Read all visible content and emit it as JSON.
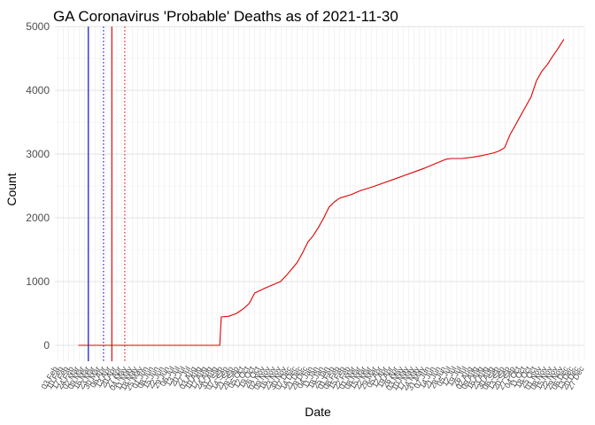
{
  "chart_data": {
    "type": "line",
    "title": "GA Coronavirus 'Probable' Deaths as of 2021-11-30",
    "xlabel": "Date",
    "ylabel": "Count",
    "x_type": "date",
    "xlim": [
      "2020-01-30",
      "2021-12-27"
    ],
    "ylim": [
      -250,
      5000
    ],
    "y_ticks": [
      0,
      1000,
      2000,
      3000,
      4000,
      5000
    ],
    "x_tick_start": "2020-02-03",
    "x_tick_step_days": 7,
    "x_tick_end": "2021-12-27",
    "x_tick_format": "DD Mon",
    "grid": true,
    "legend": "none",
    "series": [
      {
        "color": "#e00000",
        "points": [
          [
            "2020-03-01",
            0
          ],
          [
            "2020-06-01",
            0
          ],
          [
            "2020-07-01",
            0
          ],
          [
            "2020-08-01",
            0
          ],
          [
            "2020-09-03",
            0
          ],
          [
            "2020-09-05",
            445
          ],
          [
            "2020-09-15",
            455
          ],
          [
            "2020-09-25",
            500
          ],
          [
            "2020-10-05",
            580
          ],
          [
            "2020-10-12",
            660
          ],
          [
            "2020-10-19",
            820
          ],
          [
            "2020-10-26",
            860
          ],
          [
            "2020-11-02",
            900
          ],
          [
            "2020-11-12",
            950
          ],
          [
            "2020-11-22",
            1000
          ],
          [
            "2020-11-30",
            1100
          ],
          [
            "2020-12-07",
            1200
          ],
          [
            "2020-12-14",
            1300
          ],
          [
            "2020-12-21",
            1450
          ],
          [
            "2020-12-28",
            1620
          ],
          [
            "2021-01-04",
            1720
          ],
          [
            "2021-01-11",
            1850
          ],
          [
            "2021-01-18",
            2000
          ],
          [
            "2021-01-25",
            2170
          ],
          [
            "2021-02-01",
            2250
          ],
          [
            "2021-02-08",
            2310
          ],
          [
            "2021-02-22",
            2360
          ],
          [
            "2021-03-08",
            2430
          ],
          [
            "2021-03-22",
            2480
          ],
          [
            "2021-04-05",
            2540
          ],
          [
            "2021-04-19",
            2600
          ],
          [
            "2021-05-03",
            2660
          ],
          [
            "2021-05-17",
            2720
          ],
          [
            "2021-05-31",
            2780
          ],
          [
            "2021-06-14",
            2850
          ],
          [
            "2021-06-28",
            2920
          ],
          [
            "2021-07-05",
            2930
          ],
          [
            "2021-07-19",
            2930
          ],
          [
            "2021-08-02",
            2950
          ],
          [
            "2021-08-16",
            2980
          ],
          [
            "2021-08-30",
            3020
          ],
          [
            "2021-09-06",
            3050
          ],
          [
            "2021-09-13",
            3100
          ],
          [
            "2021-09-20",
            3300
          ],
          [
            "2021-09-27",
            3450
          ],
          [
            "2021-10-04",
            3600
          ],
          [
            "2021-10-11",
            3750
          ],
          [
            "2021-10-18",
            3900
          ],
          [
            "2021-10-25",
            4150
          ],
          [
            "2021-11-01",
            4300
          ],
          [
            "2021-11-08",
            4400
          ],
          [
            "2021-11-15",
            4530
          ],
          [
            "2021-11-22",
            4650
          ],
          [
            "2021-11-30",
            4800
          ]
        ]
      }
    ],
    "vertical_lines": [
      {
        "date": "2020-03-14",
        "color": "#0000cc",
        "style": "solid"
      },
      {
        "date": "2020-04-03",
        "color": "#0000cc",
        "style": "dotted"
      },
      {
        "date": "2020-04-14",
        "color": "#e00000",
        "style": "solid"
      },
      {
        "date": "2020-05-01",
        "color": "#e00000",
        "style": "dotted"
      }
    ]
  }
}
